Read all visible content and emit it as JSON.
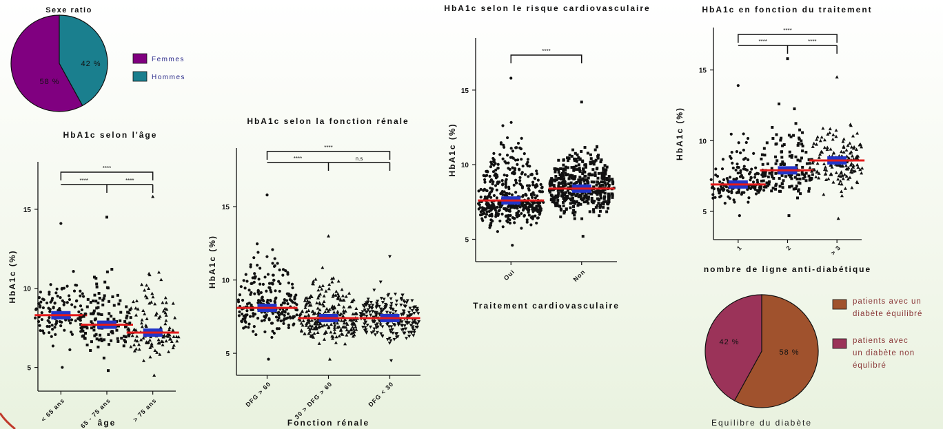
{
  "pies": [
    {
      "title": "Sexe ratio",
      "slices": [
        {
          "label": "Femmes",
          "value": 58,
          "text": "58 %",
          "color": "#800080"
        },
        {
          "label": "Hommes",
          "value": 42,
          "text": "42 %",
          "color": "#1a7f8e"
        }
      ],
      "xlabel": ""
    },
    {
      "title": "",
      "slices": [
        {
          "label": "patients avec un diabète équilibré",
          "value": 58,
          "text": "58 %",
          "color": "#a0522d"
        },
        {
          "label": "patients avec un diabète non équlibré",
          "value": 42,
          "text": "42 %",
          "color": "#9b3359"
        }
      ],
      "xlabel": "Equilibre du diabète"
    }
  ],
  "chart_data": [
    {
      "type": "scatter",
      "title": "HbA1c selon l'âge",
      "xlabel": "âge",
      "ylabel": "HbA1c (%)",
      "ylim": [
        3.5,
        18
      ],
      "yticks": [
        5,
        10,
        15
      ],
      "categories": [
        "< 65 ans",
        "65 - 75 ans",
        "> 75 ans"
      ],
      "markers": [
        "circle",
        "square",
        "triangle"
      ],
      "medians": [
        8.3,
        7.7,
        7.2
      ],
      "mins": [
        5.0,
        4.8,
        4.5
      ],
      "maxs": [
        14.1,
        14.5,
        15.8
      ],
      "significance": [
        {
          "from": 0,
          "to": 2,
          "label": "****"
        },
        {
          "from": 0,
          "to": 1,
          "label": "****"
        },
        {
          "from": 1,
          "to": 2,
          "label": "****"
        }
      ]
    },
    {
      "type": "scatter",
      "title": "HbA1c selon la fonction rénale",
      "xlabel": "Fonction rénale",
      "ylabel": "HbA1c (%)",
      "ylim": [
        3.5,
        19
      ],
      "yticks": [
        5,
        10,
        15
      ],
      "categories": [
        "DFG > 60",
        "30 > DFG > 60",
        "DFG < 30"
      ],
      "markers": [
        "circle",
        "triangle",
        "triangle-down"
      ],
      "medians": [
        8.1,
        7.4,
        7.4
      ],
      "mins": [
        4.6,
        4.6,
        4.5
      ],
      "maxs": [
        15.8,
        13.0,
        11.6
      ],
      "significance": [
        {
          "from": 0,
          "to": 2,
          "label": "****"
        },
        {
          "from": 0,
          "to": 1,
          "label": "****"
        },
        {
          "from": 1,
          "to": 2,
          "label": "n.s"
        }
      ]
    },
    {
      "type": "scatter",
      "title": "HbA1c selon le risque cardiovasculaire",
      "xlabel": "Traitement cardiovasculaire",
      "ylabel": "HbA1c (%)",
      "ylim": [
        3.5,
        18.5
      ],
      "yticks": [
        5,
        10,
        15
      ],
      "categories": [
        "Oui",
        "Non"
      ],
      "markers": [
        "circle",
        "square"
      ],
      "medians": [
        7.6,
        8.4
      ],
      "mins": [
        4.6,
        5.2
      ],
      "maxs": [
        15.8,
        14.2
      ],
      "significance": [
        {
          "from": 0,
          "to": 1,
          "label": "****"
        }
      ]
    },
    {
      "type": "scatter",
      "title": "HbA1c en fonction du traitement",
      "xlabel": "nombre de ligne anti-diabétique",
      "ylabel": "HbA1c (%)",
      "ylim": [
        3.0,
        18.0
      ],
      "yticks": [
        5,
        10,
        15
      ],
      "categories": [
        "1",
        "2",
        "> 3"
      ],
      "markers": [
        "circle",
        "square",
        "triangle"
      ],
      "medians": [
        6.9,
        7.9,
        8.6
      ],
      "mins": [
        4.7,
        4.7,
        4.5
      ],
      "maxs": [
        13.9,
        15.8,
        14.5
      ],
      "significance": [
        {
          "from": 0,
          "to": 2,
          "label": "****"
        },
        {
          "from": 0,
          "to": 1,
          "label": "****"
        },
        {
          "from": 1,
          "to": 2,
          "label": "****"
        }
      ]
    }
  ]
}
